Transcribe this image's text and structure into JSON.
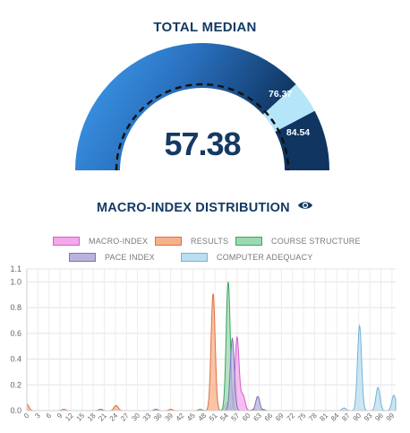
{
  "gauge": {
    "title": "TOTAL MEDIAN",
    "value_label": "57.38",
    "marker_upper_label": "76.37",
    "marker_lower_label": "84.54",
    "min": 0,
    "max": 100,
    "value": 57.38,
    "band_start": 76.37,
    "band_end": 84.54,
    "colors": {
      "main_start": "#3fa3f2",
      "main_end": "#143a63",
      "band": "#b5e5f8",
      "value_text": "#143a63"
    }
  },
  "distribution": {
    "title": "MACRO-INDEX DISTRIBUTION",
    "icon": "eye-icon",
    "legend": [
      {
        "label": "MACRO-INDEX",
        "fill": "#f3a8eb",
        "stroke": "#d25fcd"
      },
      {
        "label": "RESULTS",
        "fill": "#f8b08a",
        "stroke": "#e07040"
      },
      {
        "label": "COURSE STRUCTURE",
        "fill": "#9bd9b0",
        "stroke": "#3ea45f"
      },
      {
        "label": "PACE INDEX",
        "fill": "#b7b3dc",
        "stroke": "#7b74b7"
      },
      {
        "label": "COMPUTER ADEQUACY",
        "fill": "#b9def0",
        "stroke": "#74b3d6"
      }
    ]
  },
  "chart_data": {
    "type": "area",
    "title": "",
    "xlabel": "",
    "ylabel": "",
    "xlim": [
      0,
      100
    ],
    "ylim": [
      0,
      1.1
    ],
    "y_ticks": [
      "0.0",
      "0.2",
      "0.4",
      "0.6",
      "0.8",
      "1.0",
      "1.1"
    ],
    "x_ticks": [
      "0",
      "3",
      "6",
      "9",
      "12",
      "15",
      "18",
      "21",
      "24",
      "27",
      "30",
      "33",
      "36",
      "39",
      "42",
      "45",
      "48",
      "51",
      "54",
      "57",
      "60",
      "63",
      "66",
      "69",
      "72",
      "75",
      "78",
      "81",
      "84",
      "87",
      "90",
      "93",
      "96",
      "99"
    ],
    "grid": true,
    "series": [
      {
        "name": "MACRO-INDEX",
        "peaks": [
          [
            57,
            0.57
          ],
          [
            58.6,
            0.12
          ],
          [
            54.2,
            0.06
          ],
          [
            10,
            0.01
          ]
        ]
      },
      {
        "name": "RESULTS",
        "peaks": [
          [
            0,
            0.05
          ],
          [
            24.2,
            0.04
          ],
          [
            50.5,
            0.91
          ],
          [
            39,
            0.01
          ],
          [
            61.5,
            0.01
          ]
        ]
      },
      {
        "name": "COURSE STRUCTURE",
        "peaks": [
          [
            54.6,
            1.0
          ],
          [
            47,
            0.01
          ],
          [
            64,
            0.01
          ]
        ]
      },
      {
        "name": "PACE INDEX",
        "peaks": [
          [
            55.7,
            0.56
          ],
          [
            62.6,
            0.11
          ],
          [
            35,
            0.01
          ],
          [
            20,
            0.01
          ]
        ]
      },
      {
        "name": "COMPUTER ADEQUACY",
        "peaks": [
          [
            90.2,
            0.66
          ],
          [
            95.2,
            0.18
          ],
          [
            99.5,
            0.12
          ],
          [
            86,
            0.02
          ]
        ]
      }
    ]
  }
}
